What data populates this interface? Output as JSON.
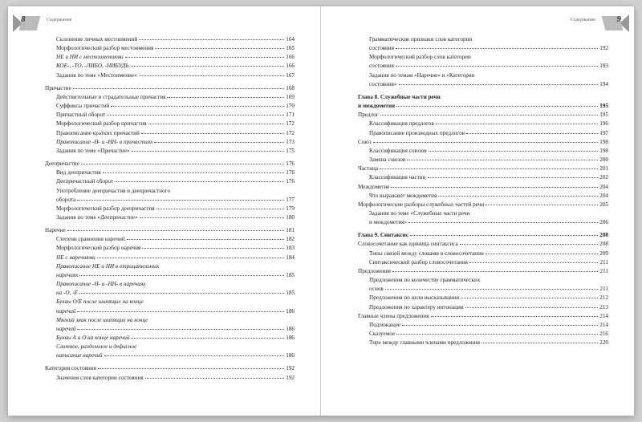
{
  "header": {
    "left_num": "8",
    "right_num": "9",
    "label": "Содержание"
  },
  "left": [
    {
      "i": 1,
      "t": "Склонение личных местоимений",
      "p": "164"
    },
    {
      "i": 1,
      "t": "Морфологический разбор местоимения",
      "p": "165"
    },
    {
      "i": 1,
      "it": 1,
      "t": "НЕ и НИ с местоимениями",
      "p": "166"
    },
    {
      "i": 1,
      "it": 1,
      "t": "КОЕ-, -ТО, -ЛИБО, -НИБУДЬ",
      "p": "166"
    },
    {
      "i": 1,
      "t": "Задания по теме «Местоимение»",
      "p": "167"
    },
    {
      "sp": 1
    },
    {
      "i": 0,
      "t": "Причастие",
      "p": "168"
    },
    {
      "i": 1,
      "t": "Действительные и страдательные причастия",
      "p": "169"
    },
    {
      "i": 1,
      "t": "Суффиксы причастий",
      "p": "170"
    },
    {
      "i": 1,
      "t": "Причастный оборот",
      "p": "171"
    },
    {
      "i": 1,
      "t": "Морфологический разбор причастия",
      "p": "172"
    },
    {
      "i": 1,
      "t": "Правописание кратких причастий",
      "p": "172"
    },
    {
      "i": 1,
      "it": 1,
      "t": "Правописание -Н- и -НН- в причастиях",
      "p": "173"
    },
    {
      "i": 1,
      "t": "Задания по теме «Причастие»",
      "p": "175"
    },
    {
      "sp": 1
    },
    {
      "i": 0,
      "t": "Деепричастие",
      "p": "176"
    },
    {
      "i": 1,
      "t": "Вид деепричастия",
      "p": "176"
    },
    {
      "i": 1,
      "t": "Деепричастный оборот",
      "p": "176"
    },
    {
      "i": 1,
      "t": "Употребление деепричастия и деепричастного",
      "cont": 1
    },
    {
      "i": 1,
      "t": "оборота",
      "p": "177"
    },
    {
      "i": 1,
      "t": "Морфологический разбор деепричастия",
      "p": "179"
    },
    {
      "i": 1,
      "t": "Задания по теме «Деепричастие»",
      "p": "180"
    },
    {
      "sp": 1
    },
    {
      "i": 0,
      "t": "Наречие",
      "p": "181"
    },
    {
      "i": 1,
      "t": "Степени сравнения наречий",
      "p": "182"
    },
    {
      "i": 1,
      "t": "Морфологический разбор наречия",
      "p": "183"
    },
    {
      "i": 1,
      "it": 1,
      "t": "НЕ с наречиями",
      "p": "184"
    },
    {
      "i": 1,
      "it": 1,
      "t": "Правописание НЕ и НИ в отрицательных",
      "cont": 1
    },
    {
      "i": 1,
      "it": 1,
      "t": "наречиях",
      "p": "185"
    },
    {
      "i": 1,
      "it": 1,
      "t": "Правописание -Н- и -НН- в наречиях",
      "cont": 1
    },
    {
      "i": 1,
      "it": 1,
      "t": "на -О, -Е",
      "p": "185"
    },
    {
      "i": 1,
      "it": 1,
      "t": "Буквы О/Е после шипящих на конце",
      "cont": 1
    },
    {
      "i": 1,
      "it": 1,
      "t": "наречий",
      "p": "186"
    },
    {
      "i": 1,
      "it": 1,
      "t": "Мягкий знак после шипящих на конце",
      "cont": 1
    },
    {
      "i": 1,
      "it": 1,
      "t": "наречий",
      "p": "186"
    },
    {
      "i": 1,
      "it": 1,
      "t": "Буквы А и О на конце наречий",
      "p": "186"
    },
    {
      "i": 1,
      "it": 1,
      "t": "Слитное, раздельное и дефисное",
      "cont": 1
    },
    {
      "i": 1,
      "it": 1,
      "t": "написание наречий",
      "p": "186"
    },
    {
      "sp": 1
    },
    {
      "i": 0,
      "t": "Категория состояния",
      "p": "192"
    },
    {
      "i": 1,
      "t": "Значения слов категории состояния",
      "p": "192"
    }
  ],
  "right": [
    {
      "i": 1,
      "t": "Грамматические признаки слов категории",
      "cont": 1
    },
    {
      "i": 1,
      "t": "состояния",
      "p": "192"
    },
    {
      "i": 1,
      "t": "Морфологический разбор слов категории",
      "cont": 1
    },
    {
      "i": 1,
      "t": "состояния",
      "p": "193"
    },
    {
      "i": 1,
      "t": "Задания по темам «Наречие» и «Категория",
      "cont": 1
    },
    {
      "i": 1,
      "t": "состояния»",
      "p": "194"
    },
    {
      "sp": 1
    },
    {
      "i": 0,
      "b": 1,
      "t": "Глава 8. Служебные части речи",
      "cont": 1
    },
    {
      "i": 0,
      "b": 1,
      "t": "и междометия",
      "p": "195",
      "bp": 1
    },
    {
      "i": 0,
      "t": "Предлог",
      "p": "195"
    },
    {
      "i": 1,
      "t": "Классификация предлогов",
      "p": "196"
    },
    {
      "i": 1,
      "t": "Правописание производных предлогов",
      "p": "197"
    },
    {
      "i": 0,
      "t": "Союз",
      "p": "198"
    },
    {
      "i": 1,
      "t": "Классификация союзов",
      "p": "198"
    },
    {
      "i": 1,
      "t": "Замена союзов",
      "p": "200"
    },
    {
      "i": 0,
      "t": "Частица",
      "p": "201"
    },
    {
      "i": 1,
      "t": "Классификация частиц",
      "p": "202"
    },
    {
      "i": 0,
      "t": "Междометие",
      "p": "204"
    },
    {
      "i": 1,
      "t": "Что выражают междометия",
      "p": "204"
    },
    {
      "i": 0,
      "t": "Морфологические разборы служебных частей речи",
      "p": "205"
    },
    {
      "i": 1,
      "t": "Задания по теме «Служебные части речи",
      "cont": 1
    },
    {
      "i": 1,
      "t": "и междометия»",
      "p": "206"
    },
    {
      "sp": 1
    },
    {
      "i": 0,
      "b": 1,
      "t": "Глава 9. Синтаксис",
      "p": "208",
      "bp": 1
    },
    {
      "i": 0,
      "t": "Словосочетание как единица синтаксиса",
      "p": "208"
    },
    {
      "i": 1,
      "t": "Типы связей между словами в словосочетании",
      "p": "209"
    },
    {
      "i": 1,
      "t": "Синтаксический разбор словосочетания",
      "p": "211"
    },
    {
      "i": 0,
      "t": "Предложение",
      "p": "211"
    },
    {
      "i": 1,
      "t": "Предложения по количеству грамматических",
      "cont": 1
    },
    {
      "i": 1,
      "t": "основ",
      "p": "211"
    },
    {
      "i": 1,
      "t": "Предложения по цели высказывания",
      "p": "212"
    },
    {
      "i": 1,
      "t": "Предложения по характеру интонации",
      "p": "213"
    },
    {
      "i": 0,
      "t": "Главные члены предложения",
      "p": "214"
    },
    {
      "i": 1,
      "t": "Подлежащее",
      "p": "214"
    },
    {
      "i": 1,
      "t": "Сказуемое",
      "p": "216"
    },
    {
      "i": 1,
      "t": "Тире между главными членами предложения",
      "p": "220"
    }
  ]
}
